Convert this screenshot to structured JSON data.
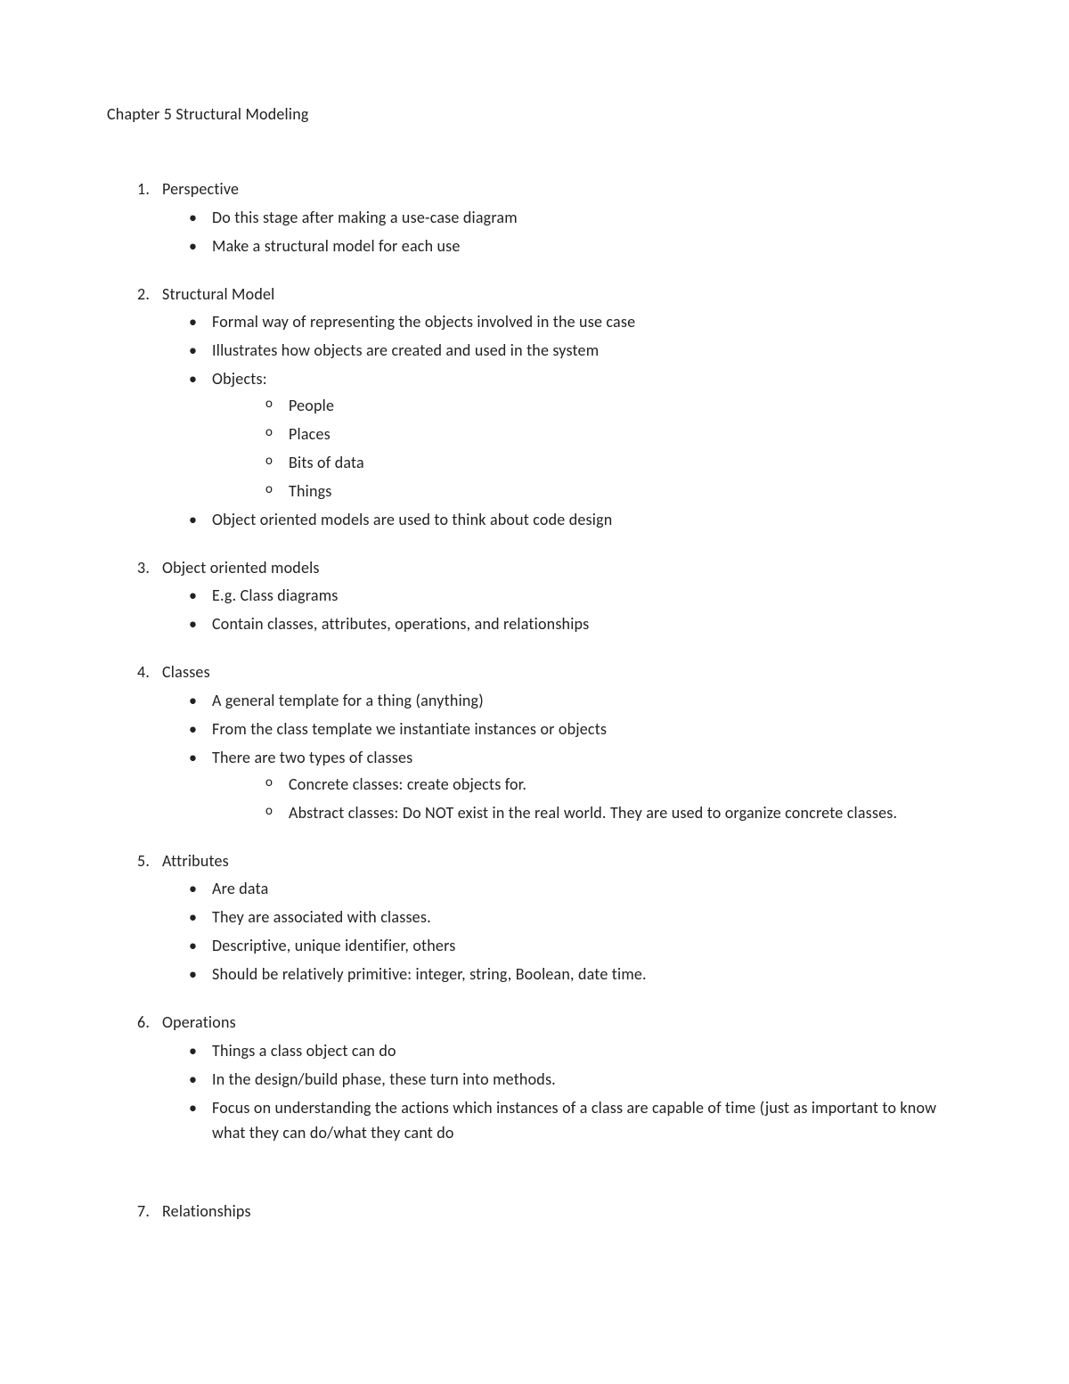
{
  "title": "Chapter 5 Structural Modeling",
  "sections": [
    {
      "num": "1.",
      "heading": "Perspective",
      "bullets": [
        {
          "text": "Do this stage after making a use-case diagram"
        },
        {
          "text": "Make a structural model for each use"
        }
      ]
    },
    {
      "num": "2.",
      "heading": "Structural Model",
      "bullets": [
        {
          "text": "Formal way of representing the objects involved in the use case"
        },
        {
          "text": "Illustrates how objects are created and used in the system"
        },
        {
          "text": "Objects:",
          "sub": [
            "People",
            "Places",
            "Bits of data",
            "Things"
          ]
        },
        {
          "text": "Object oriented models are used to think about code design"
        }
      ]
    },
    {
      "num": "3.",
      "heading": "Object oriented models",
      "bullets": [
        {
          "text": "E.g. Class diagrams"
        },
        {
          "text": "Contain classes, attributes, operations, and relationships"
        }
      ]
    },
    {
      "num": "4.",
      "heading": "Classes",
      "bullets": [
        {
          "text": "A general template for a thing (anything)"
        },
        {
          "text": "From the class template we instantiate instances or objects"
        },
        {
          "text": "There are two types of classes",
          "sub": [
            "Concrete classes: create objects for.",
            "Abstract classes: Do NOT exist in the real world. They are used to organize concrete classes."
          ]
        }
      ]
    },
    {
      "num": "5.",
      "heading": "Attributes",
      "bullets": [
        {
          "text": "Are data"
        },
        {
          "text": "They are associated with classes."
        },
        {
          "text": "Descriptive, unique identifier, others"
        },
        {
          "text": "Should be relatively primitive: integer, string, Boolean, date time."
        }
      ]
    },
    {
      "num": "6.",
      "heading": "Operations",
      "bullets": [
        {
          "text": "Things a class object can do"
        },
        {
          "text": "In the design/build phase, these turn into methods."
        },
        {
          "text": "Focus on understanding the actions which instances of a class are capable of time (just as important to know what they can do/what they cant do"
        }
      ]
    },
    {
      "num": "7.",
      "heading": "Relationships",
      "bullets": [],
      "extraTopMargin": true
    }
  ]
}
